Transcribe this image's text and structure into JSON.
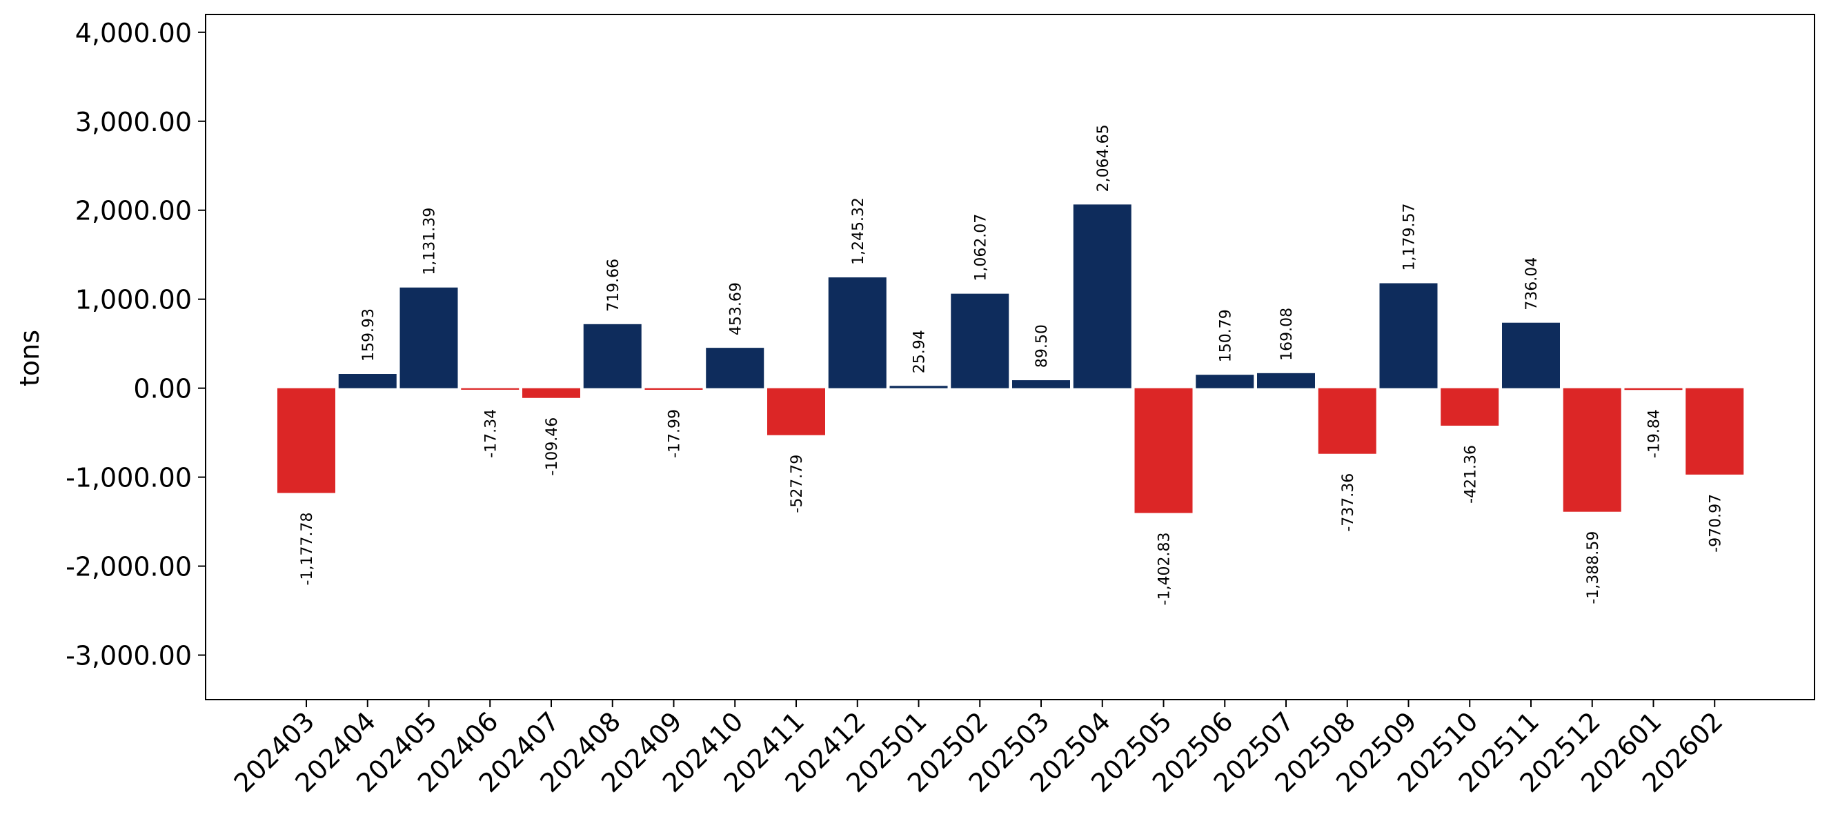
{
  "chart_data": {
    "type": "bar",
    "title": "",
    "xlabel": "",
    "ylabel": "tons",
    "ylim": [
      -3500,
      4200
    ],
    "yticks": [
      {
        "value": 4000,
        "label": "4,000.00"
      },
      {
        "value": 3000,
        "label": "3,000.00"
      },
      {
        "value": 2000,
        "label": "2,000.00"
      },
      {
        "value": 1000,
        "label": "1,000.00"
      },
      {
        "value": 0,
        "label": "0.00"
      },
      {
        "value": -1000,
        "label": "-1,000.00"
      },
      {
        "value": -2000,
        "label": "-2,000.00"
      },
      {
        "value": -3000,
        "label": "-3,000.00"
      }
    ],
    "grid": false,
    "legend": false,
    "colors": {
      "positive": "#0e2c5c",
      "negative": "#dc2626"
    },
    "categories": [
      "202403",
      "202404",
      "202405",
      "202406",
      "202407",
      "202408",
      "202409",
      "202410",
      "202411",
      "202412",
      "202501",
      "202502",
      "202503",
      "202504",
      "202505",
      "202506",
      "202507",
      "202508",
      "202509",
      "202510",
      "202511",
      "202512",
      "202601",
      "202602"
    ],
    "values": [
      -1177.78,
      159.93,
      1131.39,
      -17.34,
      -109.46,
      719.66,
      -17.99,
      453.69,
      -527.79,
      1245.32,
      25.94,
      1062.07,
      89.5,
      2064.65,
      -1402.83,
      150.79,
      169.08,
      -737.36,
      1179.57,
      -421.36,
      736.04,
      -1388.59,
      -19.84,
      -970.97
    ],
    "data_labels": [
      "-1,177.78",
      "159.93",
      "1,131.39",
      "-17.34",
      "-109.46",
      "719.66",
      "-17.99",
      "453.69",
      "-527.79",
      "1,245.32",
      "25.94",
      "1,062.07",
      "89.50",
      "2,064.65",
      "-1,402.83",
      "150.79",
      "169.08",
      "-737.36",
      "1,179.57",
      "-421.36",
      "736.04",
      "-1,388.59",
      "-19.84",
      "-970.97"
    ]
  }
}
